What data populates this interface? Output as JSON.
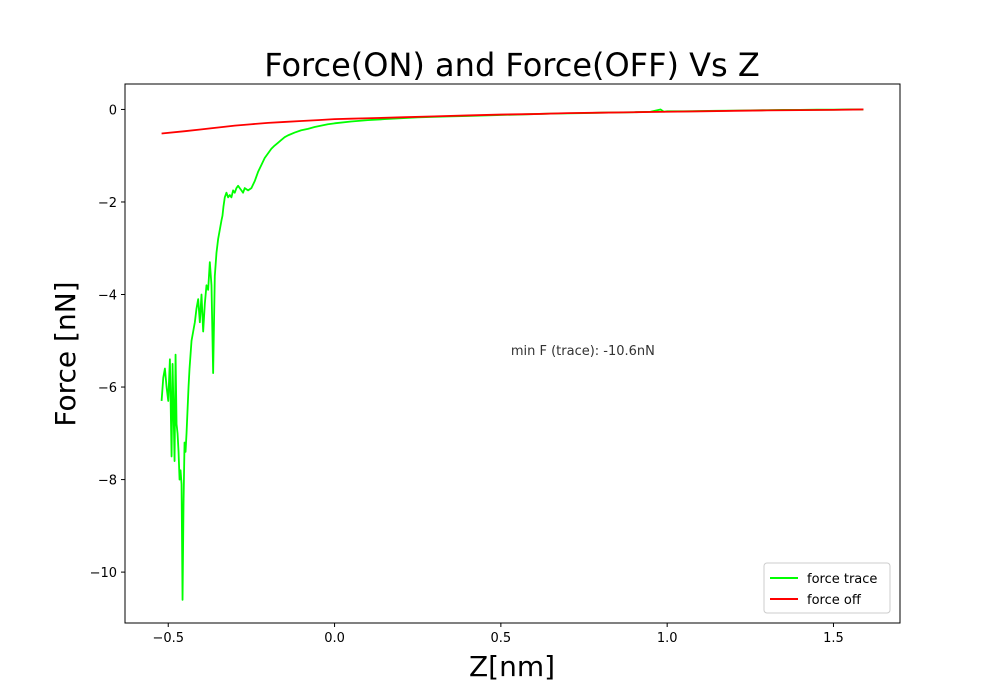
{
  "chart_data": {
    "type": "line",
    "title": "Force(ON) and Force(OFF) Vs Z",
    "xlabel": "Z[nm]",
    "ylabel": "Force [nN]",
    "xlim": [
      -0.63,
      1.7
    ],
    "ylim": [
      -11.1,
      0.55
    ],
    "xticks": [
      -0.5,
      0.0,
      0.5,
      1.0,
      1.5
    ],
    "xtick_labels": [
      "−0.5",
      "0.0",
      "0.5",
      "1.0",
      "1.5"
    ],
    "yticks": [
      0,
      -2,
      -4,
      -6,
      -8,
      -10
    ],
    "ytick_labels": [
      "0",
      "−2",
      "−4",
      "−6",
      "−8",
      "−10"
    ],
    "annotation": {
      "text": "min F (trace): -10.6nN",
      "x": 0.53,
      "y": -5.2
    },
    "legend_position": "lower-right",
    "grid": false,
    "series": [
      {
        "name": "force trace",
        "color": "#00ff00",
        "x": [
          -0.52,
          -0.515,
          -0.51,
          -0.505,
          -0.5,
          -0.495,
          -0.49,
          -0.487,
          -0.484,
          -0.481,
          -0.478,
          -0.475,
          -0.472,
          -0.469,
          -0.466,
          -0.463,
          -0.46,
          -0.457,
          -0.454,
          -0.451,
          -0.448,
          -0.445,
          -0.442,
          -0.439,
          -0.436,
          -0.433,
          -0.43,
          -0.425,
          -0.42,
          -0.415,
          -0.41,
          -0.405,
          -0.4,
          -0.395,
          -0.39,
          -0.385,
          -0.38,
          -0.375,
          -0.37,
          -0.365,
          -0.36,
          -0.355,
          -0.35,
          -0.345,
          -0.34,
          -0.337,
          -0.334,
          -0.33,
          -0.325,
          -0.32,
          -0.315,
          -0.31,
          -0.305,
          -0.3,
          -0.295,
          -0.29,
          -0.285,
          -0.28,
          -0.275,
          -0.27,
          -0.26,
          -0.25,
          -0.24,
          -0.23,
          -0.22,
          -0.21,
          -0.2,
          -0.19,
          -0.18,
          -0.17,
          -0.16,
          -0.15,
          -0.14,
          -0.12,
          -0.1,
          -0.08,
          -0.06,
          -0.04,
          -0.02,
          0.0,
          0.05,
          0.1,
          0.15,
          0.2,
          0.25,
          0.3,
          0.35,
          0.4,
          0.45,
          0.5,
          0.55,
          0.6,
          0.65,
          0.7,
          0.75,
          0.8,
          0.85,
          0.9,
          0.95,
          0.98,
          0.99,
          1.0,
          1.05,
          1.1,
          1.15,
          1.2,
          1.25,
          1.3,
          1.35,
          1.4,
          1.45,
          1.5,
          1.55,
          1.59
        ],
        "y": [
          -6.3,
          -5.8,
          -5.6,
          -6.0,
          -6.3,
          -5.4,
          -7.5,
          -5.5,
          -6.5,
          -7.6,
          -5.3,
          -6.8,
          -7.0,
          -7.4,
          -8.0,
          -7.8,
          -8.1,
          -10.6,
          -8.5,
          -7.2,
          -7.4,
          -7.0,
          -6.5,
          -6.0,
          -5.6,
          -5.3,
          -5.0,
          -4.8,
          -4.6,
          -4.3,
          -4.1,
          -4.6,
          -4.0,
          -4.8,
          -4.2,
          -3.8,
          -3.9,
          -3.3,
          -3.8,
          -5.7,
          -3.6,
          -3.1,
          -2.8,
          -2.6,
          -2.4,
          -2.3,
          -2.1,
          -1.9,
          -1.8,
          -1.9,
          -1.85,
          -1.9,
          -1.75,
          -1.8,
          -1.7,
          -1.65,
          -1.7,
          -1.75,
          -1.8,
          -1.7,
          -1.75,
          -1.7,
          -1.55,
          -1.35,
          -1.2,
          -1.05,
          -0.95,
          -0.85,
          -0.78,
          -0.72,
          -0.66,
          -0.6,
          -0.56,
          -0.5,
          -0.45,
          -0.42,
          -0.38,
          -0.35,
          -0.32,
          -0.3,
          -0.26,
          -0.23,
          -0.21,
          -0.19,
          -0.17,
          -0.16,
          -0.15,
          -0.14,
          -0.13,
          -0.12,
          -0.11,
          -0.1,
          -0.09,
          -0.085,
          -0.08,
          -0.07,
          -0.065,
          -0.06,
          -0.05,
          0.0,
          -0.05,
          -0.04,
          -0.04,
          -0.035,
          -0.03,
          -0.025,
          -0.02,
          -0.015,
          -0.01,
          -0.01,
          -0.005,
          -0.005,
          0.0,
          0.0
        ]
      },
      {
        "name": "force off",
        "color": "#ff0000",
        "x": [
          -0.52,
          -0.45,
          -0.4,
          -0.35,
          -0.3,
          -0.25,
          -0.2,
          -0.15,
          -0.1,
          -0.05,
          0.0,
          0.05,
          0.1,
          0.2,
          0.3,
          0.4,
          0.5,
          0.6,
          0.7,
          0.8,
          0.9,
          1.0,
          1.1,
          1.2,
          1.3,
          1.4,
          1.5,
          1.59
        ],
        "y": [
          -0.52,
          -0.47,
          -0.43,
          -0.39,
          -0.35,
          -0.32,
          -0.29,
          -0.27,
          -0.25,
          -0.23,
          -0.21,
          -0.2,
          -0.19,
          -0.17,
          -0.15,
          -0.13,
          -0.11,
          -0.1,
          -0.08,
          -0.07,
          -0.06,
          -0.05,
          -0.04,
          -0.03,
          -0.02,
          -0.015,
          -0.01,
          0.0
        ]
      }
    ]
  }
}
